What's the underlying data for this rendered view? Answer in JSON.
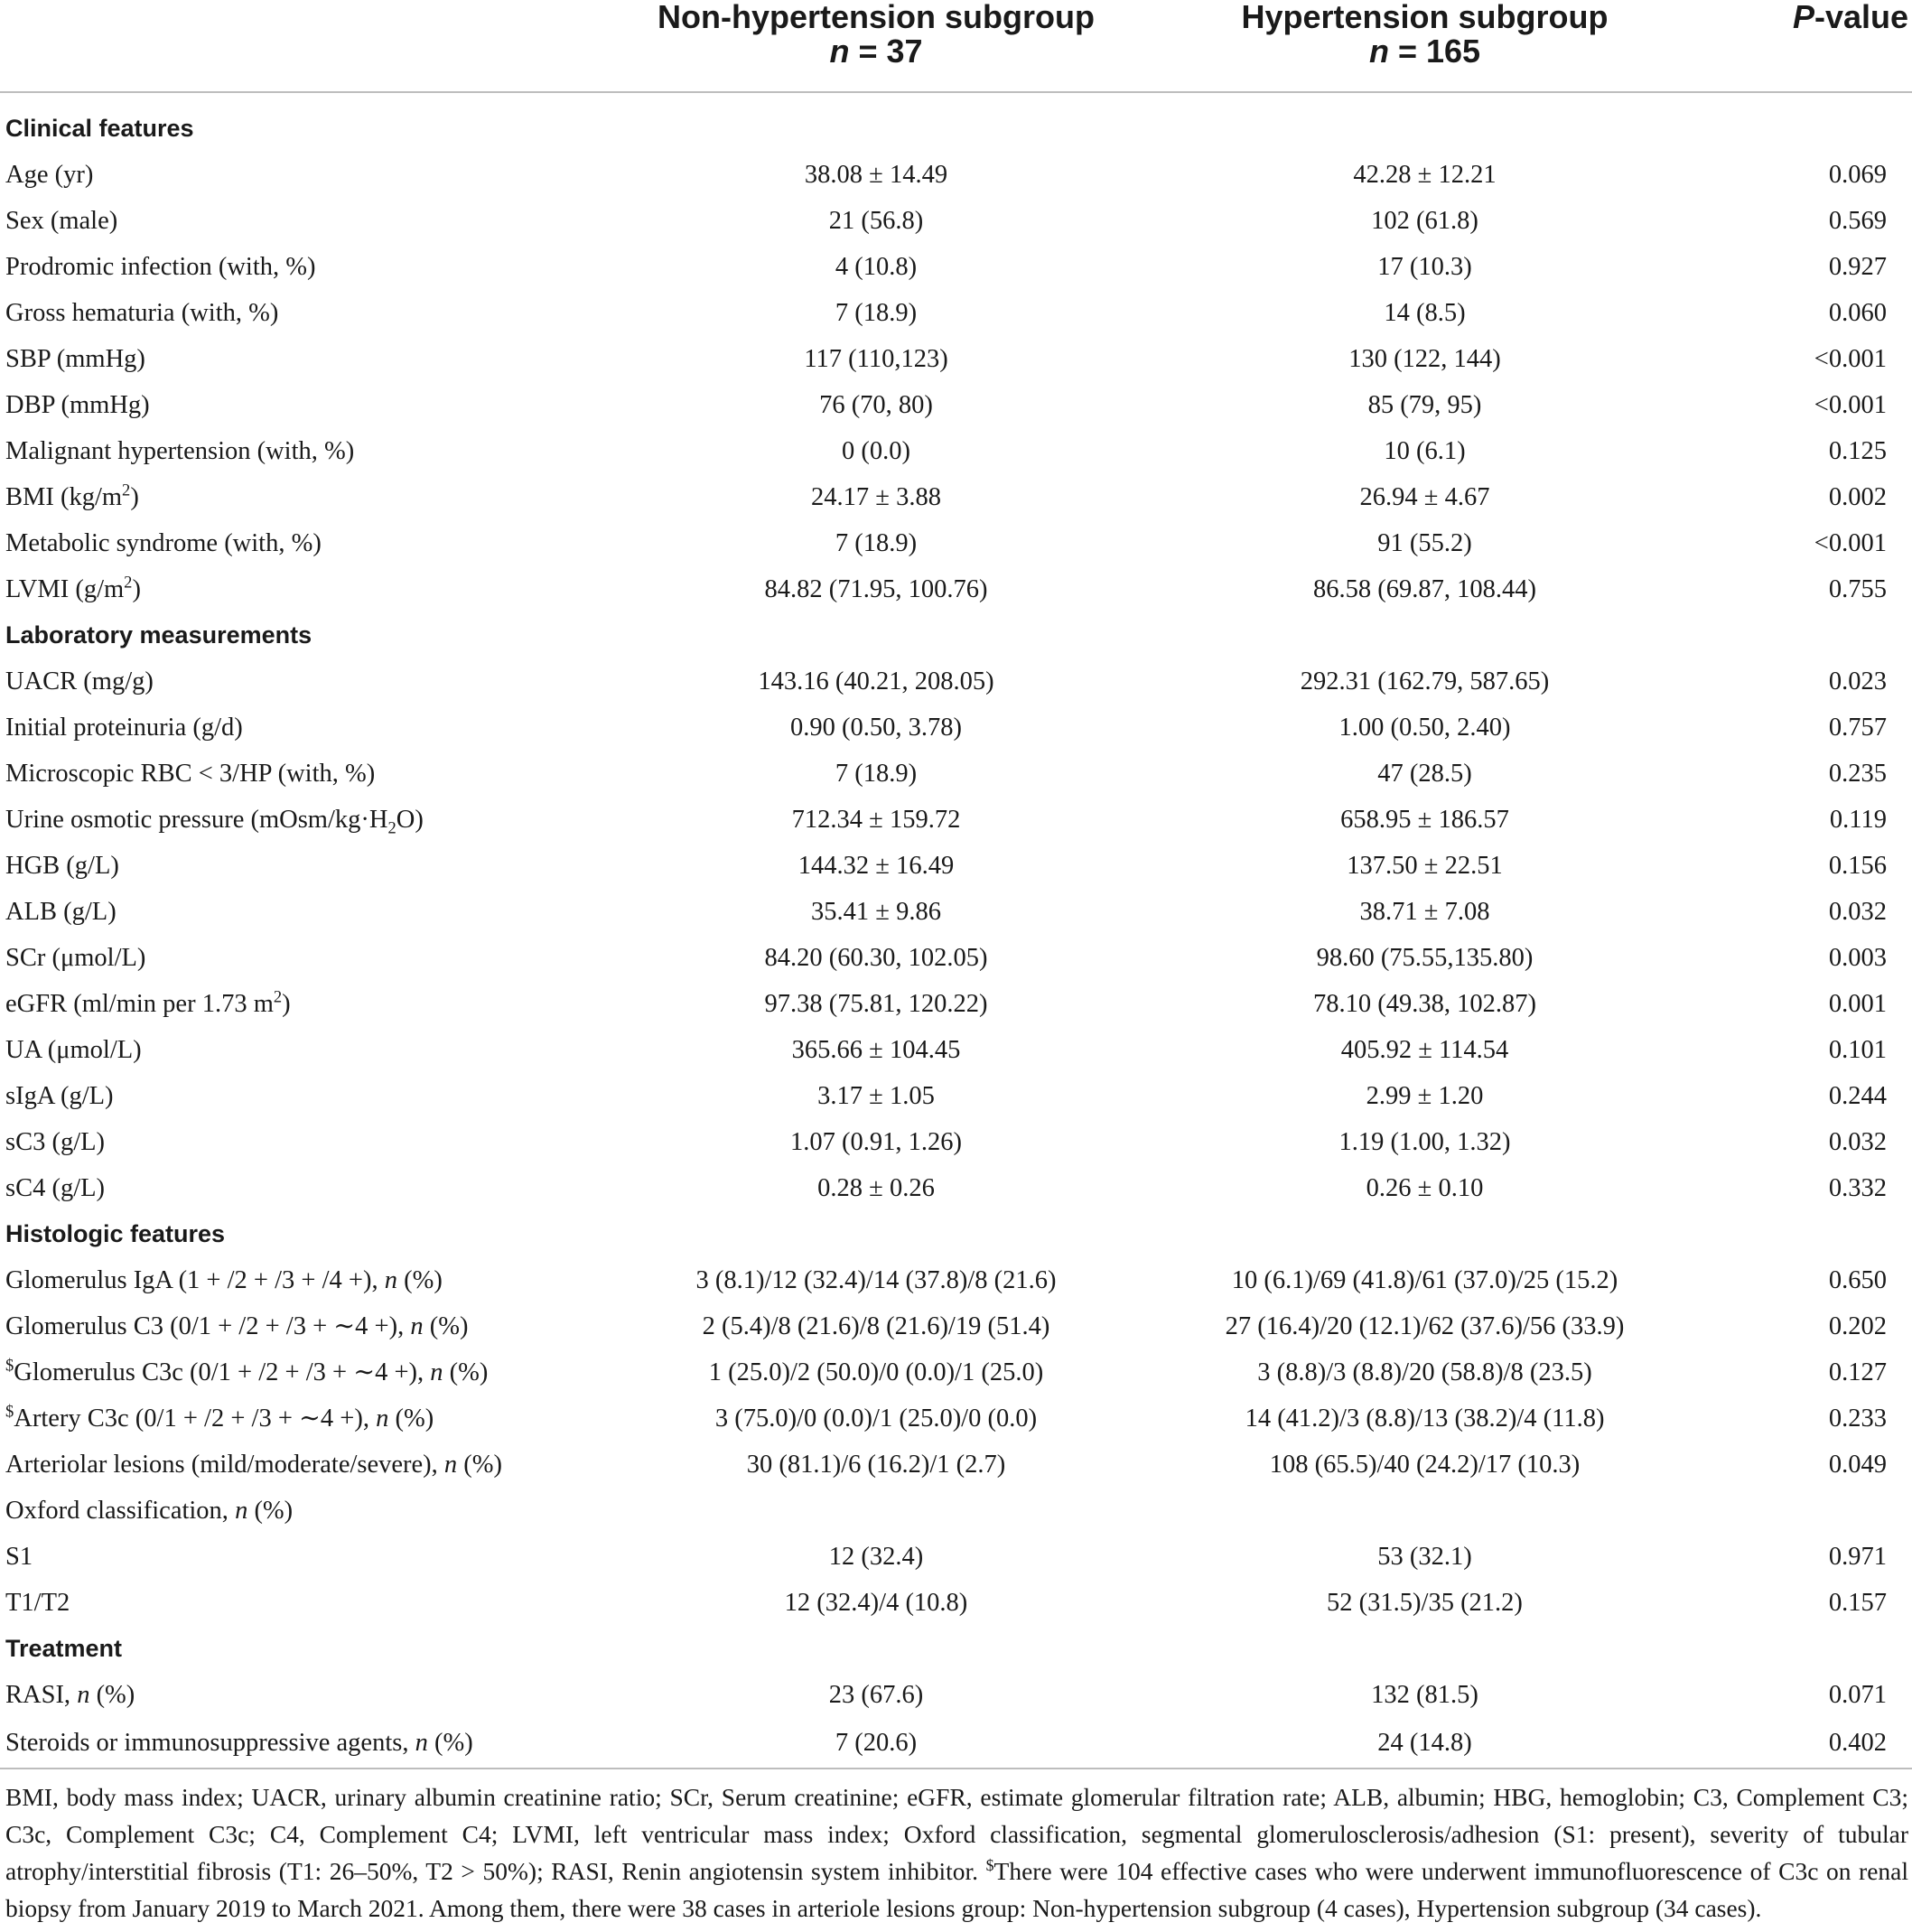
{
  "header": {
    "col1_title": "Non-hypertension subgroup",
    "col1_n": "n = 37",
    "col2_title": "Hypertension subgroup",
    "col2_n": "n = 165",
    "col3_title": "P-value"
  },
  "rows": [
    {
      "type": "section",
      "label": "Clinical features"
    },
    {
      "label": "Age (yr)",
      "non": "38.08 ± 14.49",
      "hyp": "42.28 ± 12.21",
      "p": "0.069"
    },
    {
      "label": "Sex (male)",
      "non": "21 (56.8)",
      "hyp": "102 (61.8)",
      "p": "0.569"
    },
    {
      "label": "Prodromic infection (with, %)",
      "non": "4 (10.8)",
      "hyp": "17 (10.3)",
      "p": "0.927"
    },
    {
      "label": "Gross hematuria (with, %)",
      "non": "7 (18.9)",
      "hyp": "14 (8.5)",
      "p": "0.060"
    },
    {
      "label": "SBP (mmHg)",
      "non": "117 (110,123)",
      "hyp": "130 (122, 144)",
      "p": "<0.001"
    },
    {
      "label": "DBP (mmHg)",
      "non": "76 (70, 80)",
      "hyp": "85 (79, 95)",
      "p": "<0.001"
    },
    {
      "label": "Malignant hypertension (with, %)",
      "non": "0 (0.0)",
      "hyp": "10 (6.1)",
      "p": "0.125"
    },
    {
      "label": "BMI (kg/m²)",
      "non": "24.17 ± 3.88",
      "hyp": "26.94 ± 4.67",
      "p": "0.002"
    },
    {
      "label": "Metabolic syndrome (with, %)",
      "non": "7 (18.9)",
      "hyp": "91 (55.2)",
      "p": "<0.001"
    },
    {
      "label": "LVMI (g/m²)",
      "non": "84.82 (71.95, 100.76)",
      "hyp": "86.58 (69.87, 108.44)",
      "p": "0.755"
    },
    {
      "type": "section",
      "label": "Laboratory measurements"
    },
    {
      "label": "UACR (mg/g)",
      "non": "143.16 (40.21, 208.05)",
      "hyp": "292.31 (162.79, 587.65)",
      "p": "0.023"
    },
    {
      "label": "Initial proteinuria (g/d)",
      "non": "0.90 (0.50, 3.78)",
      "hyp": "1.00 (0.50, 2.40)",
      "p": "0.757"
    },
    {
      "label": "Microscopic RBC < 3/HP (with, %)",
      "non": "7 (18.9)",
      "hyp": "47 (28.5)",
      "p": "0.235"
    },
    {
      "label": "Urine osmotic pressure (mOsm/kg·H₂O)",
      "non": "712.34 ± 159.72",
      "hyp": "658.95 ± 186.57",
      "p": "0.119"
    },
    {
      "label": "HGB (g/L)",
      "non": "144.32 ± 16.49",
      "hyp": "137.50 ± 22.51",
      "p": "0.156"
    },
    {
      "label": "ALB (g/L)",
      "non": "35.41 ± 9.86",
      "hyp": "38.71 ± 7.08",
      "p": "0.032"
    },
    {
      "label": "SCr (μmol/L)",
      "non": "84.20 (60.30, 102.05)",
      "hyp": "98.60 (75.55,135.80)",
      "p": "0.003"
    },
    {
      "label": "eGFR (ml/min per 1.73 m²)",
      "non": "97.38 (75.81, 120.22)",
      "hyp": "78.10 (49.38, 102.87)",
      "p": "0.001"
    },
    {
      "label": "UA (μmol/L)",
      "non": "365.66 ± 104.45",
      "hyp": "405.92 ± 114.54",
      "p": "0.101"
    },
    {
      "label": "sIgA (g/L)",
      "non": "3.17 ± 1.05",
      "hyp": "2.99 ± 1.20",
      "p": "0.244"
    },
    {
      "label": "sC3 (g/L)",
      "non": "1.07 (0.91, 1.26)",
      "hyp": "1.19 (1.00, 1.32)",
      "p": "0.032"
    },
    {
      "label": "sC4 (g/L)",
      "non": "0.28 ± 0.26",
      "hyp": "0.26 ± 0.10",
      "p": "0.332"
    },
    {
      "type": "section",
      "label": "Histologic features"
    },
    {
      "label": "Glomerulus IgA (1 + /2 + /3 + /4 +), n (%)",
      "non": "3 (8.1)/12 (32.4)/14 (37.8)/8 (21.6)",
      "hyp": "10 (6.1)/69 (41.8)/61 (37.0)/25 (15.2)",
      "p": "0.650"
    },
    {
      "label": "Glomerulus C3 (0/1 + /2 + /3 + ∼4 +), n (%)",
      "non": "2 (5.4)/8 (21.6)/8 (21.6)/19 (51.4)",
      "hyp": "27 (16.4)/20 (12.1)/62 (37.6)/56 (33.9)",
      "p": "0.202"
    },
    {
      "label": "$Glomerulus C3c (0/1 + /2 + /3 + ∼4 +), n (%)",
      "non": "1 (25.0)/2 (50.0)/0 (0.0)/1 (25.0)",
      "hyp": "3 (8.8)/3 (8.8)/20 (58.8)/8 (23.5)",
      "p": "0.127"
    },
    {
      "label": "$Artery C3c (0/1 + /2 + /3 + ∼4 +), n (%)",
      "non": "3 (75.0)/0 (0.0)/1 (25.0)/0 (0.0)",
      "hyp": "14 (41.2)/3 (8.8)/13 (38.2)/4 (11.8)",
      "p": "0.233"
    },
    {
      "label": "Arteriolar lesions (mild/moderate/severe), n (%)",
      "non": "30 (81.1)/6 (16.2)/1 (2.7)",
      "hyp": "108 (65.5)/40 (24.2)/17 (10.3)",
      "p": "0.049"
    },
    {
      "label": "Oxford classification, n (%)",
      "non": "",
      "hyp": "",
      "p": ""
    },
    {
      "label": "S1",
      "non": "12 (32.4)",
      "hyp": "53 (32.1)",
      "p": "0.971"
    },
    {
      "label": "T1/T2",
      "non": "12 (32.4)/4 (10.8)",
      "hyp": "52 (31.5)/35 (21.2)",
      "p": "0.157"
    },
    {
      "type": "section",
      "label": "Treatment"
    },
    {
      "label": "RASI, n (%)",
      "non": "23 (67.6)",
      "hyp": "132 (81.5)",
      "p": "0.071"
    },
    {
      "label": "Steroids or immunosuppressive agents, n (%)",
      "non": "7 (20.6)",
      "hyp": "24 (14.8)",
      "p": "0.402"
    }
  ],
  "footnote": "BMI, body mass index; UACR, urinary albumin creatinine ratio; SCr, Serum creatinine; eGFR, estimate glomerular filtration rate; ALB, albumin; HBG, hemoglobin; C3, Complement C3; C3c, Complement C3c; C4, Complement C4; LVMI, left ventricular mass index; Oxford classification, segmental glomerulosclerosis/adhesion (S1: present), severity of tubular atrophy/interstitial fibrosis (T1: 26–50%, T2 > 50%); RASI, Renin angiotensin system inhibitor. $There were 104 effective cases who were underwent immunofluorescence of C3c on renal biopsy from January 2019 to March 2021. Among them, there were 38 cases in arteriole lesions group: Non-hypertension subgroup (4 cases), Hypertension subgroup (34 cases)."
}
